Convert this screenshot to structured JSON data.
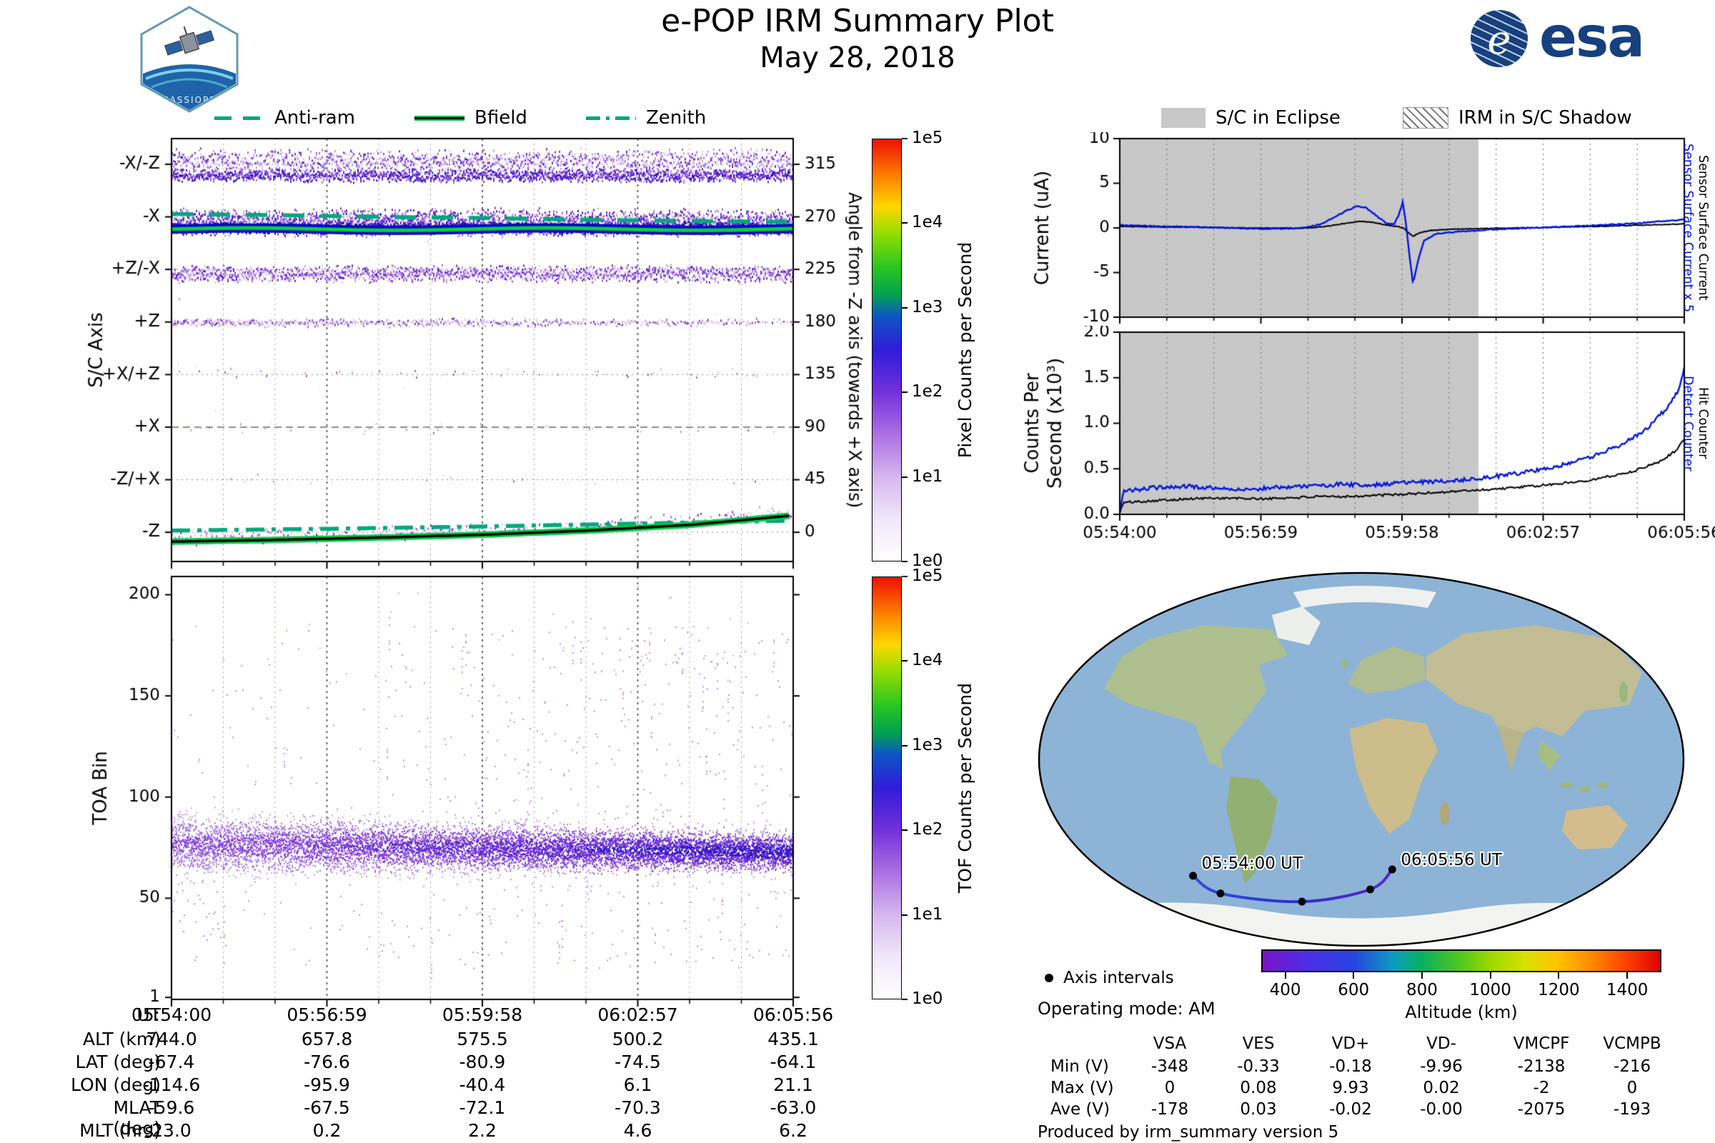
{
  "header": {
    "title": "e-POP IRM Summary Plot",
    "date": "May 28, 2018",
    "cassiope_label": "CASSIOPE",
    "esa_text": "esa",
    "esa_emblem": "e"
  },
  "direction_legend": {
    "line_color": "#00a87e",
    "items": [
      {
        "label": "Anti-ram",
        "style": "dashed"
      },
      {
        "label": "Bfield",
        "style": "solid"
      },
      {
        "label": "Zenith",
        "style": "dashdot"
      }
    ]
  },
  "status_legend": {
    "eclipse_label": "S/C in Eclipse",
    "eclipse_color": "#c8c8c8",
    "shadow_label": "IRM in S/C Shadow"
  },
  "time_axis": {
    "tick_labels": [
      "05:54:00",
      "05:56:59",
      "05:59:58",
      "06:02:57",
      "06:05:56"
    ],
    "total_seconds": 716,
    "minor_divisions": 12
  },
  "chart_data": [
    {
      "id": "sc_axis_spectrogram",
      "type": "heatmap",
      "ylabel": "S/C Axis",
      "y_categories": [
        "-X/-Z",
        "-X",
        "+Z/-X",
        "+Z",
        "+X/+Z",
        "+X",
        "-Z/+X",
        "-Z"
      ],
      "category_angles": [
        315,
        270,
        225,
        180,
        135,
        90,
        45,
        0
      ],
      "right_axis_label": "Angle from -Z axis (towards +X axis)",
      "right_ticks": [
        0,
        45,
        90,
        135,
        180,
        225,
        270,
        315
      ],
      "angle_range": [
        -25,
        337
      ],
      "colorbar": {
        "label": "Pixel Counts per Second",
        "ticks": [
          "1e0",
          "1e1",
          "1e2",
          "1e3",
          "1e4",
          "1e5"
        ]
      },
      "bands": [
        {
          "center": 318,
          "halfwidth": 12,
          "density": 3.5,
          "bias": 0.4
        },
        {
          "center": 306,
          "halfwidth": 6,
          "density": 4,
          "bias": 0.62
        },
        {
          "center": 266,
          "halfwidth": 13,
          "density": 6,
          "bias": 0.52
        },
        {
          "center": 261,
          "halfwidth": 5,
          "density": 7,
          "bias": 0.85
        },
        {
          "center": 222,
          "halfwidth": 8,
          "density": 4,
          "bias": 0.42
        },
        {
          "center": 180,
          "halfwidth": 4,
          "density": 2.2,
          "bias": 0.32,
          "fade": true
        },
        {
          "center": 137,
          "halfwidth": 5,
          "density": 0.22,
          "bias": 0.2
        },
        {
          "center": 90,
          "halfwidth": 6,
          "density": 0.1,
          "bias": 0.15
        },
        {
          "center": 45,
          "halfwidth": 6,
          "density": 0.08,
          "bias": 0.15
        },
        {
          "center": 170,
          "halfwidth": 160,
          "density": 0.06,
          "bias": 0.1
        },
        {
          "center": 4,
          "halfwidth": 7,
          "density": 1.1,
          "bias": 0.3,
          "follow": "bfield"
        }
      ],
      "green_core_angle": 259.8,
      "overlays": {
        "anti_ram": {
          "style": "dashed",
          "points": [
            [
              0,
              272.5
            ],
            [
              120,
              271.5
            ],
            [
              240,
              270
            ],
            [
              360,
              269
            ],
            [
              480,
              267.5
            ],
            [
              600,
              266.5
            ],
            [
              716,
              265.5
            ]
          ]
        },
        "bfield": {
          "style": "solid",
          "points": [
            [
              0,
              -8
            ],
            [
              120,
              -6.5
            ],
            [
              240,
              -4.5
            ],
            [
              360,
              -2
            ],
            [
              480,
              1.5
            ],
            [
              600,
              6.5
            ],
            [
              716,
              14.5
            ]
          ]
        },
        "zenith": {
          "style": "dashdot",
          "points": [
            [
              0,
              1.5
            ],
            [
              180,
              3
            ],
            [
              360,
              5
            ],
            [
              540,
              7.5
            ],
            [
              716,
              10
            ]
          ]
        }
      }
    },
    {
      "id": "toa_spectrogram",
      "type": "heatmap",
      "ylabel": "TOA Bin",
      "yticks": [
        1,
        50,
        100,
        150,
        200
      ],
      "y_range": [
        0,
        209
      ],
      "colorbar": {
        "label": "TOF Counts per Second",
        "ticks": [
          "1e0",
          "1e1",
          "1e2",
          "1e3",
          "1e4",
          "1e5"
        ]
      },
      "cloud": {
        "mean_start": 77,
        "mean_end": 73,
        "sigma_start": 11.5,
        "sigma_end": 7.5,
        "density_start": 8,
        "density_end": 12
      },
      "outlier_range": [
        15,
        185
      ],
      "description": "Dense violet band of time-of-arrival counts centered near TOA bin 75 across the whole pass, sparse scattered counts between bins 15 and 185"
    },
    {
      "id": "sensor_current",
      "type": "line",
      "ylabel": [
        "Current (uA)"
      ],
      "ylim": [
        -10,
        10
      ],
      "yticks": [
        -10,
        -5,
        0,
        5,
        10
      ],
      "ytick_labels": [
        "-10",
        "-5",
        "0",
        "5",
        "10"
      ],
      "right_labels": [
        {
          "text": "Sensor Surface Current x 5",
          "color": "#0014e6"
        },
        {
          "text": "Sensor Surface Current",
          "color": "#000000"
        }
      ],
      "eclipse_end_seconds": 455,
      "series": [
        {
          "name": "Sensor Surface Current x 5",
          "color": "#0014e6",
          "noise": 0.06,
          "points": [
            [
              0,
              0.3
            ],
            [
              60,
              0.15
            ],
            [
              120,
              0.05
            ],
            [
              180,
              -0.1
            ],
            [
              230,
              -0.05
            ],
            [
              255,
              0.4
            ],
            [
              285,
              1.8
            ],
            [
              300,
              2.4
            ],
            [
              312,
              2.3
            ],
            [
              325,
              1.4
            ],
            [
              338,
              0.5
            ],
            [
              348,
              0.4
            ],
            [
              354,
              1.5
            ],
            [
              359,
              2.9
            ],
            [
              363,
              0.5
            ],
            [
              368,
              -3.5
            ],
            [
              372,
              -6.3
            ],
            [
              378,
              -3.8
            ],
            [
              386,
              -1.4
            ],
            [
              400,
              -0.7
            ],
            [
              430,
              -0.4
            ],
            [
              470,
              -0.2
            ],
            [
              520,
              0
            ],
            [
              570,
              0.15
            ],
            [
              620,
              0.35
            ],
            [
              670,
              0.6
            ],
            [
              716,
              0.95
            ]
          ]
        },
        {
          "name": "Sensor Surface Current",
          "color": "#000000",
          "noise": 0.035,
          "points": [
            [
              0,
              0.15
            ],
            [
              80,
              0.08
            ],
            [
              160,
              0
            ],
            [
              230,
              -0.05
            ],
            [
              260,
              0.15
            ],
            [
              285,
              0.5
            ],
            [
              305,
              0.75
            ],
            [
              322,
              0.6
            ],
            [
              340,
              0.3
            ],
            [
              352,
              0.15
            ],
            [
              360,
              0
            ],
            [
              366,
              -0.5
            ],
            [
              372,
              -0.95
            ],
            [
              380,
              -0.55
            ],
            [
              392,
              -0.3
            ],
            [
              420,
              -0.15
            ],
            [
              470,
              -0.05
            ],
            [
              540,
              0.05
            ],
            [
              620,
              0.2
            ],
            [
              716,
              0.45
            ]
          ]
        }
      ]
    },
    {
      "id": "counters",
      "type": "line",
      "ylabel": [
        "Counts Per",
        "Second (x10³)"
      ],
      "ylim": [
        0,
        2
      ],
      "yticks": [
        0,
        0.5,
        1,
        1.5,
        2
      ],
      "ytick_labels": [
        "0.0",
        "0.5",
        "1.0",
        "1.5",
        "2.0"
      ],
      "right_labels": [
        {
          "text": "Detect Counter",
          "color": "#0014e6"
        },
        {
          "text": "Hit Counter",
          "color": "#000000"
        }
      ],
      "eclipse_end_seconds": 455,
      "series": [
        {
          "name": "Detect Counter",
          "color": "#0014e6",
          "noise": 0.022,
          "points": [
            [
              0,
              0.03
            ],
            [
              5,
              0.25
            ],
            [
              40,
              0.29
            ],
            [
              80,
              0.31
            ],
            [
              120,
              0.29
            ],
            [
              160,
              0.27
            ],
            [
              200,
              0.3
            ],
            [
              240,
              0.31
            ],
            [
              280,
              0.33
            ],
            [
              320,
              0.32
            ],
            [
              360,
              0.35
            ],
            [
              400,
              0.36
            ],
            [
              440,
              0.38
            ],
            [
              480,
              0.42
            ],
            [
              520,
              0.47
            ],
            [
              560,
              0.54
            ],
            [
              600,
              0.64
            ],
            [
              640,
              0.78
            ],
            [
              670,
              0.95
            ],
            [
              695,
              1.18
            ],
            [
              708,
              1.35
            ],
            [
              716,
              1.6
            ]
          ]
        },
        {
          "name": "Hit Counter",
          "color": "#000000",
          "noise": 0.013,
          "points": [
            [
              0,
              0.02
            ],
            [
              5,
              0.13
            ],
            [
              60,
              0.16
            ],
            [
              120,
              0.18
            ],
            [
              180,
              0.17
            ],
            [
              240,
              0.19
            ],
            [
              300,
              0.2
            ],
            [
              360,
              0.22
            ],
            [
              420,
              0.25
            ],
            [
              480,
              0.28
            ],
            [
              540,
              0.32
            ],
            [
              600,
              0.38
            ],
            [
              650,
              0.47
            ],
            [
              685,
              0.58
            ],
            [
              705,
              0.7
            ],
            [
              716,
              0.82
            ]
          ]
        }
      ]
    },
    {
      "id": "ground_track_map",
      "type": "map",
      "track": [
        {
          "time": "05:54:00",
          "lon": -114.6,
          "lat": -67.4,
          "alt_km": 744.0
        },
        {
          "time": "05:56:59",
          "lon": -95.9,
          "lat": -76.6,
          "alt_km": 657.8
        },
        {
          "time": "05:59:58",
          "lon": -40.4,
          "lat": -80.9,
          "alt_km": 575.5
        },
        {
          "time": "06:02:57",
          "lon": 6.1,
          "lat": -74.5,
          "alt_km": 500.2
        },
        {
          "time": "06:05:56",
          "lon": 21.1,
          "lat": -64.1,
          "alt_km": 435.1
        }
      ],
      "start_label": "05:54:00 UT",
      "end_label": "06:05:56 UT",
      "legend_dot_label": "Axis intervals",
      "altitude_bar": {
        "label": "Altitude (km)",
        "ticks": [
          400,
          600,
          800,
          1000,
          1200,
          1400
        ],
        "range": [
          330,
          1500
        ]
      }
    }
  ],
  "ephemeris": {
    "rows": [
      {
        "label": "UT",
        "values": [
          "05:54:00",
          "05:56:59",
          "05:59:58",
          "06:02:57",
          "06:05:56"
        ]
      },
      {
        "label": "ALT (km)",
        "values": [
          "744.0",
          "657.8",
          "575.5",
          "500.2",
          "435.1"
        ]
      },
      {
        "label": "LAT (deg)",
        "values": [
          "-67.4",
          "-76.6",
          "-80.9",
          "-74.5",
          "-64.1"
        ]
      },
      {
        "label": "LON (deg)",
        "values": [
          "-114.6",
          "-95.9",
          "-40.4",
          "6.1",
          "21.1"
        ]
      },
      {
        "label": "MLAT (deg)",
        "values": [
          "-59.6",
          "-67.5",
          "-72.1",
          "-70.3",
          "-63.0"
        ]
      },
      {
        "label": "MLT (hrs)",
        "values": [
          "23.0",
          "0.2",
          "2.2",
          "4.6",
          "6.2"
        ]
      }
    ]
  },
  "voltage_table": {
    "columns": [
      "VSA",
      "VES",
      "VD+",
      "VD-",
      "VMCPF",
      "VCMPB"
    ],
    "rows": [
      {
        "label": "Min (V)",
        "values": [
          "-348",
          "-0.33",
          "-0.18",
          "-9.96",
          "-2138",
          "-216"
        ]
      },
      {
        "label": "Max (V)",
        "values": [
          "0",
          "0.08",
          "9.93",
          "0.02",
          "-2",
          "0"
        ]
      },
      {
        "label": "Ave (V)",
        "values": [
          "-178",
          "0.03",
          "-0.02",
          "-0.00",
          "-2075",
          "-193"
        ]
      }
    ]
  },
  "footer": {
    "operating_mode": "Operating mode: AM",
    "produced_by": "Produced by irm_summary version 5"
  },
  "colormaps": {
    "counts_stops": [
      [
        0,
        "#ffffff"
      ],
      [
        0.1,
        "#f0e7f9"
      ],
      [
        0.2,
        "#d6b6ef"
      ],
      [
        0.3,
        "#ab70e3"
      ],
      [
        0.4,
        "#7231da"
      ],
      [
        0.5,
        "#2f1cd9"
      ],
      [
        0.58,
        "#0d55c4"
      ],
      [
        0.63,
        "#00a050"
      ],
      [
        0.7,
        "#2ec81e"
      ],
      [
        0.78,
        "#9ade00"
      ],
      [
        0.84,
        "#ffd800"
      ],
      [
        0.9,
        "#ff9000"
      ],
      [
        1,
        "#ee1000"
      ]
    ],
    "altitude_stops": [
      [
        0,
        "#7a12c8"
      ],
      [
        0.12,
        "#4a30e8"
      ],
      [
        0.23,
        "#2545e0"
      ],
      [
        0.33,
        "#0a9cc0"
      ],
      [
        0.4,
        "#0ab060"
      ],
      [
        0.5,
        "#52c81e"
      ],
      [
        0.57,
        "#9ad800"
      ],
      [
        0.66,
        "#d8e000"
      ],
      [
        0.74,
        "#ffc400"
      ],
      [
        0.83,
        "#ff8800"
      ],
      [
        0.91,
        "#ff4400"
      ],
      [
        1,
        "#e00000"
      ]
    ]
  }
}
